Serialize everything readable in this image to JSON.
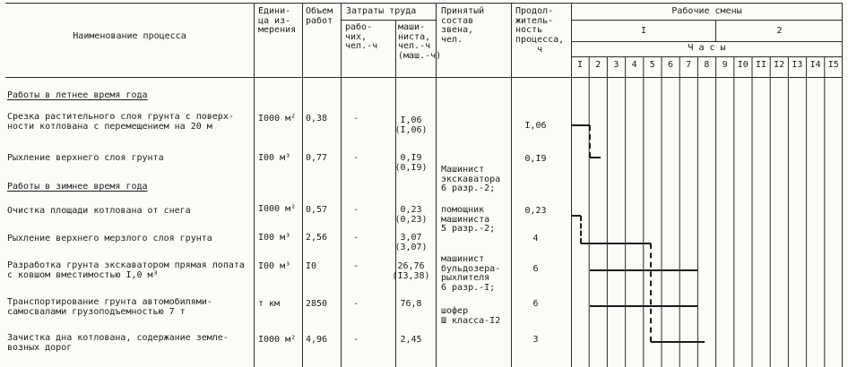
{
  "header": {
    "process": "Наименование процесса",
    "unit": "Едини-\nца из-\nмерения",
    "volume": "Объем\nработ",
    "labor": "Затраты труда",
    "labor_workers": "рабо-\nчих,\nчел.-ч",
    "labor_machinist": "маши-\nниста,\nчел.-ч\n(маш.-ч)",
    "crew": "Принятый\nсостав\nзвена,\nчел.",
    "duration": "Продол-\nжитель-\nность\nпроцесса,\n    ч",
    "shifts_title": "Рабочие смены",
    "shift1": "I",
    "shift2": "2",
    "hours_title": "Ч а с ы",
    "hours": [
      "I",
      "2",
      "3",
      "4",
      "5",
      "6",
      "7",
      "8",
      "9",
      "I0",
      "II",
      "I2",
      "I3",
      "I4",
      "I5"
    ]
  },
  "sections": [
    {
      "title": "Работы в летнее время года"
    },
    {
      "title": "Работы в зимнее время года"
    }
  ],
  "rows": [
    {
      "name": "Срезка растительного слоя грунта с поверх-\nности котлована с перемещением на 20 м",
      "unit": "I000 м²",
      "volume": "0,38",
      "workers": "-",
      "machinist": "I,06\n(I,06)",
      "duration": "I,06"
    },
    {
      "name": "Рыхление верхнего слоя грунта",
      "unit": "I00 м³",
      "volume": "0,77",
      "workers": "-",
      "machinist": "0,I9\n(0,I9)",
      "duration": "0,I9"
    },
    {
      "name": "Очистка площади котлована от снега",
      "unit": "I000 м²",
      "volume": "0,57",
      "workers": "-",
      "machinist": "0,23\n(0,23)",
      "duration": "0,23"
    },
    {
      "name": "Рыхление верхнего мерзлого слоя грунта",
      "unit": "I00 м³",
      "volume": "2,56",
      "workers": "-",
      "machinist": "3,07\n(3,07)",
      "duration": "4"
    },
    {
      "name": "Разработка грунта экскаватором прямая лопата\nс ковшом вместимостью I,0 м³",
      "unit": "I00 м³",
      "volume": "I0",
      "workers": "-",
      "machinist": "26,76\n(I3,38)",
      "duration": "6"
    },
    {
      "name": "Транспортирование грунта автомобилями-\nсамосвалами грузоподъемностью 7 т",
      "unit": "т км",
      "volume": "2850",
      "workers": "-",
      "machinist": "76,8",
      "duration": "6"
    },
    {
      "name": "Зачистка дна котлована, содержание земле-\nвозных дорог",
      "unit": "I000 м²",
      "volume": "4,96",
      "workers": "-",
      "machinist": "2,45",
      "duration": "3"
    }
  ],
  "crew_notes": [
    "Машинист\nэкскаватора\n6 разр.-2;",
    "помощник\nмашиниста\n5 разр.-2;",
    "машинист\nбульдозера-\nрыхлителя\n6 разр.-I;",
    "шофер\nШ класса-I2"
  ],
  "chart_data": {
    "type": "gantt",
    "x_axis": {
      "label": "Часы",
      "range": [
        0,
        15
      ],
      "shift_1_hours": "1-8",
      "shift_2_hours": "9-15"
    },
    "bars": [
      {
        "process": "Срезка растительного слоя грунта",
        "row": 0,
        "start_h": 0,
        "duration_h": 1.06,
        "draw_start": 0,
        "draw_end": 1.06
      },
      {
        "process": "Рыхление верхнего слоя грунта",
        "row": 1,
        "start_h": 1.06,
        "duration_h": 0.19,
        "draw_start": 1.06,
        "draw_end": 1.62
      },
      {
        "process": "Очистка площади котлована от снега",
        "row": 2,
        "start_h": 0,
        "duration_h": 0.23,
        "draw_start": 0,
        "draw_end": 0.55
      },
      {
        "process": "Рыхление верхнего мерзлого слоя грунта",
        "row": 3,
        "start_h": 0.23,
        "duration_h": 4,
        "draw_start": 0.55,
        "draw_end": 4.4
      },
      {
        "process": "Разработка грунта экскаватором",
        "row": 4,
        "start_h": 1,
        "duration_h": 6,
        "draw_start": 1.04,
        "draw_end": 7.0
      },
      {
        "process": "Транспортирование грунта автомобилями-самосвалами",
        "row": 5,
        "start_h": 1,
        "duration_h": 6,
        "draw_start": 1.04,
        "draw_end": 7.0
      },
      {
        "process": "Зачистка дна котлована",
        "row": 6,
        "start_h": 4.23,
        "duration_h": 3,
        "draw_start": 4.4,
        "draw_end": 7.4
      }
    ],
    "connectors": [
      {
        "from_bar": 0,
        "to_bar": 1
      },
      {
        "from_bar": 2,
        "to_bar": 3
      },
      {
        "from_bar": 3,
        "to_bar": 6
      }
    ]
  },
  "colors": {
    "ink": "#1c1c1c",
    "paper": "#fbfbf8"
  }
}
